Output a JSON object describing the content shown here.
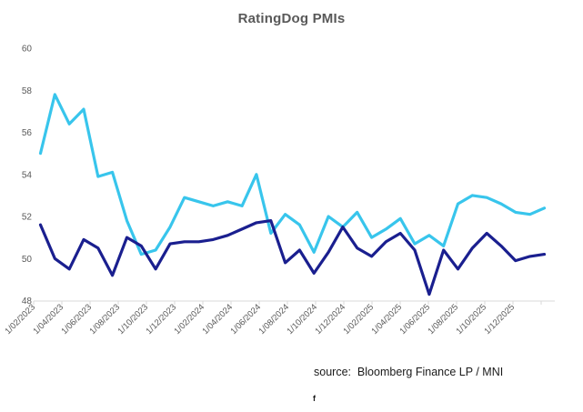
{
  "title": "RatingDog PMIs",
  "source_note": "source:  Bloomberg Finance LP / MNI",
  "footer_mark": "f",
  "chart_data": {
    "type": "line",
    "title": "RatingDog PMIs",
    "grid": false,
    "legend": "none",
    "ylim": [
      48,
      60
    ],
    "y_ticks": [
      60,
      58,
      56,
      54,
      52,
      50,
      48
    ],
    "x_tick_labels": [
      "1/02/2023",
      "1/04/2023",
      "1/06/2023",
      "1/08/2023",
      "1/10/2023",
      "1/12/2023",
      "1/02/2024",
      "1/04/2024",
      "1/06/2024",
      "1/08/2024",
      "1/10/2024",
      "1/12/2024",
      "1/02/2025",
      "1/04/2025",
      "1/06/2025",
      "1/08/2025",
      "1/10/2025",
      "1/12/2025"
    ],
    "x": [
      "1/02/2023",
      "1/03/2023",
      "1/04/2023",
      "1/05/2023",
      "1/06/2023",
      "1/07/2023",
      "1/08/2023",
      "1/09/2023",
      "1/10/2023",
      "1/11/2023",
      "1/12/2023",
      "1/01/2024",
      "1/02/2024",
      "1/03/2024",
      "1/04/2024",
      "1/05/2024",
      "1/06/2024",
      "1/07/2024",
      "1/08/2024",
      "1/09/2024",
      "1/10/2024",
      "1/11/2024",
      "1/12/2024",
      "1/01/2025",
      "1/02/2025",
      "1/03/2025",
      "1/04/2025",
      "1/05/2025",
      "1/06/2025",
      "1/07/2025",
      "1/08/2025",
      "1/09/2025",
      "1/10/2025",
      "1/11/2025",
      "1/12/2025",
      "1/01/2026"
    ],
    "series": [
      {
        "id": "cyan-line",
        "color": "#38C5EC",
        "values": [
          55.0,
          57.8,
          56.4,
          57.1,
          53.9,
          54.1,
          51.8,
          50.2,
          50.4,
          51.5,
          52.9,
          52.7,
          52.5,
          52.7,
          52.5,
          54.0,
          51.2,
          52.1,
          51.6,
          50.3,
          52.0,
          51.5,
          52.2,
          51.0,
          51.4,
          51.9,
          50.7,
          51.1,
          50.6,
          52.6,
          53.0,
          52.9,
          52.6,
          52.2,
          52.1,
          52.4
        ]
      },
      {
        "id": "navy-line",
        "color": "#1A1F8F",
        "values": [
          51.6,
          50.0,
          49.5,
          50.9,
          50.5,
          49.2,
          51.0,
          50.6,
          49.5,
          50.7,
          50.8,
          50.8,
          50.9,
          51.1,
          51.4,
          51.7,
          51.8,
          49.8,
          50.4,
          49.3,
          50.3,
          51.5,
          50.5,
          50.1,
          50.8,
          51.2,
          50.4,
          48.3,
          50.4,
          49.5,
          50.5,
          51.2,
          50.6,
          49.9,
          50.1,
          50.2
        ]
      }
    ],
    "axis_color": "#D9D9D9",
    "label_color": "#595959"
  }
}
